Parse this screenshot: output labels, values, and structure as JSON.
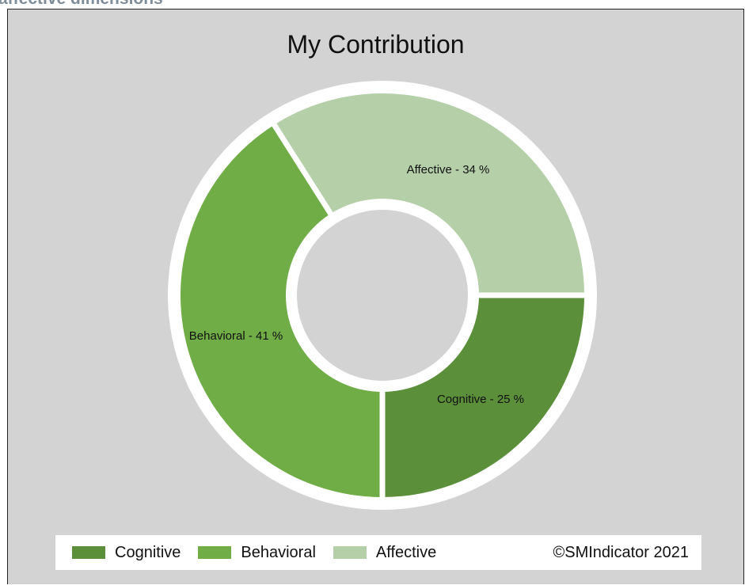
{
  "page": {
    "heading": "affective  dimensions"
  },
  "chart_data": {
    "type": "pie",
    "title": "My Contribution",
    "donut": true,
    "slices": [
      {
        "label": "Cognitive",
        "value": 25,
        "color": "#5b8f3a",
        "data_label": "Cognitive - 25 %"
      },
      {
        "label": "Behavioral",
        "value": 41,
        "color": "#70ad47",
        "data_label": "Behavioral - 41 %"
      },
      {
        "label": "Affective",
        "value": 34,
        "color": "#b5cfa8",
        "data_label": "Affective - 34 %"
      }
    ],
    "background_color": "#d3d3d3",
    "legend": {
      "placement": "bottom",
      "items": [
        "Cognitive",
        "Behavioral",
        "Affective"
      ],
      "copyright": "©SMIndicator 2021"
    }
  }
}
